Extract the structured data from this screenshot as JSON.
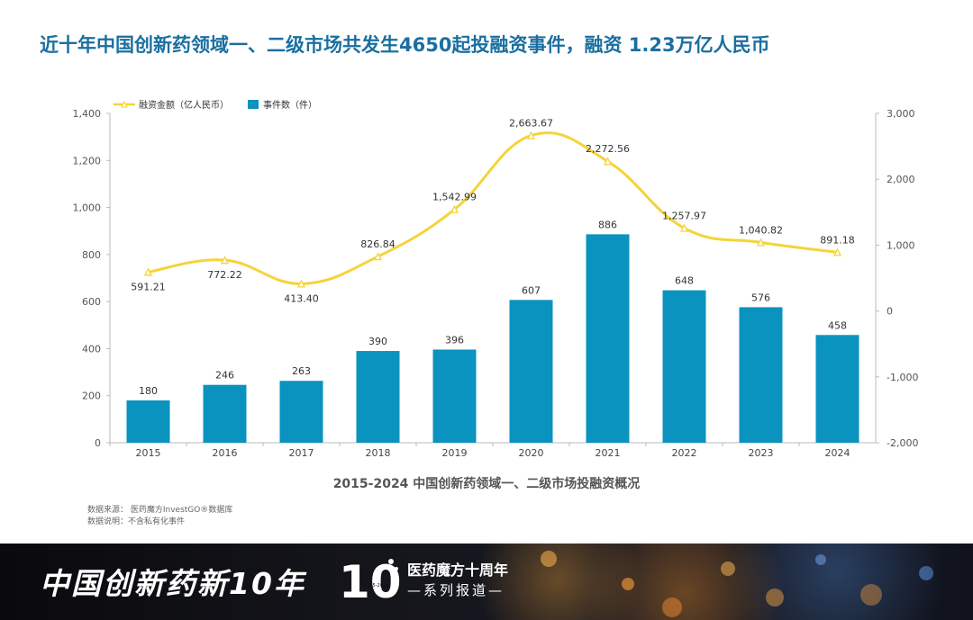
{
  "headline": "近十年中国创新药领域一、二级市场共发生4650起投融资事件，融资 1.23万亿人民币",
  "chart_data": {
    "type": "bar+line",
    "title": "2015-2024 中国创新药领域一、二级市场投融资概况",
    "categories": [
      "2015",
      "2016",
      "2017",
      "2018",
      "2019",
      "2020",
      "2021",
      "2022",
      "2023",
      "2024"
    ],
    "series": [
      {
        "name": "事件数（件）",
        "type": "bar",
        "axis": "left",
        "color": "#0b93bf",
        "values": [
          180,
          246,
          263,
          390,
          396,
          607,
          886,
          648,
          576,
          458
        ],
        "labels": [
          "180",
          "246",
          "263",
          "390",
          "396",
          "607",
          "886",
          "648",
          "576",
          "458"
        ]
      },
      {
        "name": "融资金额（亿人民币）",
        "type": "line",
        "axis": "right",
        "color": "#f5d33a",
        "values": [
          591.21,
          772.22,
          413.4,
          826.84,
          1542.99,
          2663.67,
          2272.56,
          1257.97,
          1040.82,
          891.18
        ],
        "labels": [
          "591.21",
          "772.22",
          "413.40",
          "826.84",
          "1,542.99",
          "2,663.67",
          "2,272.56",
          "1,257.97",
          "1,040.82",
          "891.18"
        ]
      }
    ],
    "left_axis": {
      "min": 0,
      "max": 1400,
      "ticks": [
        "0",
        "200",
        "400",
        "600",
        "800",
        "1,000",
        "1,200",
        "1,400"
      ]
    },
    "right_axis": {
      "min": -2000,
      "max": 3000,
      "ticks": [
        "-2,000",
        "-1,000",
        "0",
        "1,000",
        "2,000",
        "3,000"
      ]
    },
    "legend_position": "top-left",
    "grid": false
  },
  "notes": {
    "source": "数据来源：  医药魔方InvestGO®数据库",
    "remark": "数据说明：不含私有化事件"
  },
  "footer": {
    "brand": "中国创新药新10年",
    "logo_number": "10",
    "logo_years": "2015-2025",
    "series_title": "医药魔方十周年",
    "series_sub": "—系列报道—"
  }
}
